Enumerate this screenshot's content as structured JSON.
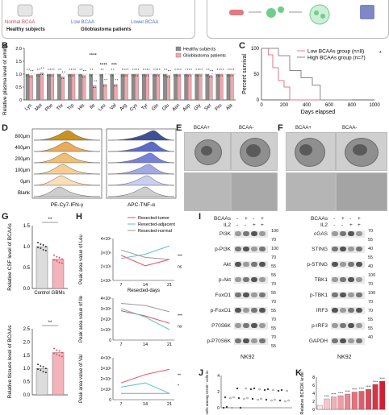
{
  "panel_a": {
    "groups": [
      "Normal BCAA",
      "Low BCAA",
      "Lower BCAA"
    ],
    "cohorts": [
      "Healthy subjects",
      "Glioblastoma patients"
    ]
  },
  "panel_letters": [
    "B",
    "C",
    "D",
    "E",
    "F",
    "G",
    "H",
    "I",
    "J",
    "K"
  ],
  "panel_b": {
    "chart_data": {
      "type": "bar",
      "ylabel": "Relative plasma level of amino acid",
      "categories": [
        "Lys",
        "Met",
        "Phe",
        "Thr",
        "Trp",
        "His",
        "Ile",
        "Leu",
        "Val",
        "Arg",
        "Cys",
        "Tyr",
        "Gln",
        "Glu",
        "Asn",
        "Asp",
        "Gly",
        "Ser",
        "Pro",
        "Ala"
      ],
      "ylim": [
        0,
        2.0
      ],
      "yticks": [
        "0",
        "0.5",
        "1.0",
        "1.5",
        "2.0"
      ],
      "series": [
        {
          "name": "Healthy subjects",
          "color": "#8c8c8c",
          "values": [
            1.0,
            1.0,
            1.0,
            1.0,
            1.0,
            1.0,
            1.0,
            1.0,
            1.0,
            1.0,
            1.0,
            1.0,
            1.0,
            1.0,
            1.0,
            1.0,
            1.0,
            1.0,
            1.0,
            1.0
          ]
        },
        {
          "name": "Glioblastoma patients",
          "color": "#f2a6ad",
          "values": [
            0.95,
            1.05,
            1.0,
            0.9,
            1.0,
            0.95,
            0.55,
            0.6,
            0.6,
            1.0,
            1.0,
            1.0,
            1.0,
            0.95,
            1.0,
            1.0,
            1.0,
            0.95,
            1.0,
            1.0
          ]
        }
      ],
      "sig": [
        "****",
        "****",
        "***"
      ]
    }
  },
  "panel_c": {
    "chart_data": {
      "type": "line",
      "xlabel": "Days elapsed",
      "ylabel": "Percent survival",
      "xlim": [
        0,
        1000
      ],
      "ylim": [
        0,
        100
      ],
      "xticks": [
        "0",
        "200",
        "400",
        "600",
        "800",
        "1000"
      ],
      "yticks": [
        "0",
        "50",
        "100"
      ],
      "series": [
        {
          "name": "Low BCAAs group (n=8)",
          "color": "#e07a84",
          "x": [
            0,
            60,
            60,
            100,
            100,
            150,
            150,
            200,
            200,
            250,
            250,
            800
          ],
          "y": [
            100,
            100,
            87.5,
            87.5,
            62.5,
            62.5,
            37.5,
            37.5,
            25,
            25,
            0,
            0
          ]
        },
        {
          "name": "High BCAAs group (n=7)",
          "color": "#888888",
          "x": [
            0,
            150,
            150,
            250,
            250,
            350,
            350,
            450,
            450,
            520,
            520,
            800
          ],
          "y": [
            100,
            100,
            85.7,
            85.7,
            57.1,
            57.1,
            42.9,
            42.9,
            28.6,
            28.6,
            0,
            0
          ]
        }
      ],
      "sig": "*"
    }
  },
  "panel_d": {
    "rows": [
      "800μm",
      "400μm",
      "200μm",
      "100μm",
      "0μm",
      "Blank"
    ],
    "left_xlabel": "PE-Cy7-IFN-γ",
    "right_xlabel": "APC-TNF-α",
    "colors_left": [
      "#c8860b",
      "#e6a24a",
      "#f0b867",
      "#f5c98a",
      "#f9ddb3",
      "#c9c9c9"
    ],
    "colors_right": [
      "#2c3e8c",
      "#4a5cc0",
      "#6a74d4",
      "#9aa0e3",
      "#c6c9f0",
      "#c9c9c9"
    ]
  },
  "panel_e": {
    "left": "BCAA+",
    "right": "BCAA-"
  },
  "panel_f": {
    "left": "BCAA+",
    "right": "BCAA-"
  },
  "panel_g": {
    "top": {
      "chart_data": {
        "type": "bar",
        "ylabel": "Relative CSF level of BCAAs",
        "categories": [
          "Control",
          "GBMs"
        ],
        "values": [
          1.0,
          0.7
        ],
        "ylim": [
          0,
          1.5
        ],
        "yticks": [
          "0.0",
          "0.5",
          "1.0",
          "1.5"
        ],
        "sig": "**"
      }
    },
    "bottom": {
      "chart_data": {
        "type": "bar",
        "ylabel": "Relative tissues level of BCAAs",
        "values": [
          1.0,
          1.6
        ],
        "ylim": [
          0,
          2.5
        ],
        "yticks": [
          "0.0",
          "0.5",
          "1.0",
          "1.5",
          "2.0",
          "2.5"
        ],
        "sig": "**"
      }
    }
  },
  "panel_h": {
    "legend": [
      "Resected-tumor",
      "Resected-adjacent",
      "Resected-normal"
    ],
    "colors": [
      "#e84a5f",
      "#5cc6c2",
      "#9a9a9a"
    ],
    "xlabel": "Resected-days",
    "xticks": [
      "7",
      "14",
      "21"
    ],
    "charts": [
      {
        "ylabel": "Peak area value of Leu",
        "yticks": [
          "1×10⁶",
          "2×10⁶",
          "3×10⁶",
          "4×10⁶"
        ],
        "series": [
          [
            2.4,
            1.4,
            2.0
          ],
          [
            2.1,
            2.5,
            3.3
          ],
          [
            2.9,
            2.2,
            2.0
          ]
        ]
      },
      {
        "ylabel": "Peak area value of Ile",
        "yticks": [
          "0",
          "1×10⁵",
          "2×10⁵",
          "3×10⁵",
          "4×10⁵"
        ],
        "series": [
          [
            2.8,
            2.3,
            1.6
          ],
          [
            3.0,
            2.2,
            1.0
          ],
          [
            3.5,
            3.3,
            2.7
          ]
        ]
      },
      {
        "ylabel": "Peak area value of Val",
        "yticks": [
          "0",
          "1×10⁵",
          "2×10⁵",
          "3×10⁵",
          "4×10⁵"
        ],
        "series": [
          [
            1.6,
            2.4,
            2.9
          ],
          [
            1.2,
            1.6,
            0.6
          ],
          [
            0.6,
            0.6,
            0.6
          ]
        ]
      }
    ],
    "sig": [
      "***",
      "ns",
      "***",
      "ns",
      "**",
      "*"
    ]
  },
  "panel_i": {
    "col_headers": [
      "BCAAs",
      "IL2"
    ],
    "signs": [
      [
        "-",
        "+",
        "-",
        "+"
      ],
      [
        "-",
        "-",
        "+",
        "+"
      ]
    ],
    "rows": [
      "PI3K",
      "p-PI3K",
      "Akt",
      "p-Akt",
      "FoxO1",
      "p-FoxO1",
      "P70S6K",
      "p-P70S6K"
    ],
    "kda": [
      "100",
      "70",
      "100",
      "70",
      "55",
      "55",
      "70",
      "55",
      "70",
      "55",
      "70",
      "55",
      "70",
      "55"
    ],
    "footer": "NK92"
  },
  "panel_i2": {
    "col_headers": [
      "BCAAs",
      "IL2"
    ],
    "signs": [
      [
        "-",
        "+",
        "-",
        "+"
      ],
      [
        "-",
        "-",
        "+",
        "+"
      ]
    ],
    "rows": [
      "cGAS",
      "STING",
      "p-STING",
      "TBK1",
      "p-TBK1",
      "IRF3",
      "p-IRF3",
      "GAPDH"
    ],
    "kda": [
      "70",
      "55",
      "40",
      "55",
      "40",
      "100",
      "70",
      "100",
      "70",
      "70",
      "55",
      "55",
      "40"
    ],
    "footer": "NK92"
  },
  "panel_j": {
    "ylabel": "% of NK cells among CD45⁺ cells in the tumor",
    "yticks": [
      "0",
      "2",
      "4"
    ]
  },
  "panel_k": {
    "chart_data": {
      "type": "bar",
      "ylabel": "Relative BCKDK level",
      "values": [
        1.0,
        2.6,
        3.1,
        3.4,
        3.8,
        4.3,
        4.5,
        5.0,
        6.2,
        7.0
      ],
      "ylim": [
        0,
        8
      ],
      "yticks": [
        "0",
        "2",
        "4",
        "6",
        "8"
      ],
      "sig": [
        "****",
        "****",
        "****",
        "****",
        "****",
        "****",
        "****",
        "****",
        "****"
      ]
    }
  }
}
